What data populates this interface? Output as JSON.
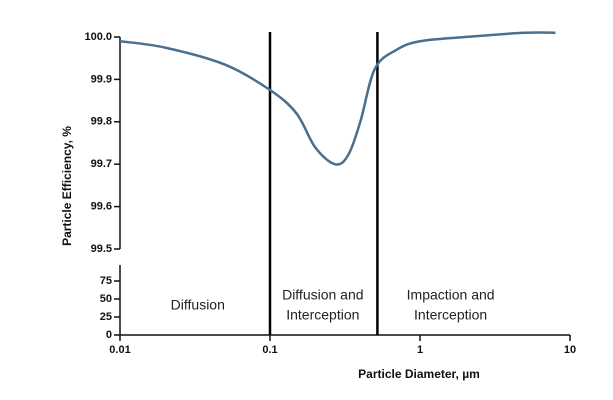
{
  "chart_data": {
    "type": "line",
    "x_label": "Particle Diameter, µm",
    "y_label": "Particle Efficiency, %",
    "log_x": true,
    "xlim": [
      0.01,
      10
    ],
    "xticks": [
      0.01,
      0.1,
      1,
      10
    ],
    "ylim": [
      99.5,
      100.0
    ],
    "yticks": [
      {
        "value": 100.0,
        "label": "100.0"
      },
      99.9,
      99.8,
      99.7,
      99.6,
      99.5
    ],
    "lower_ylim": [
      0,
      75
    ],
    "lower_yticks": [
      0,
      25,
      50,
      75
    ],
    "dividers": [
      0.1,
      0.52
    ],
    "annotations": [
      {
        "lines": [
          "Diffusion"
        ],
        "x": 0.033
      },
      {
        "lines": [
          "Diffusion and",
          "Interception"
        ],
        "x": 0.225
      },
      {
        "lines": [
          "Impaction and",
          "Interception"
        ],
        "x": 1.6
      }
    ],
    "series": [
      {
        "name": "Particle Efficiency",
        "color": "#4a6f8f",
        "x": [
          0.01,
          0.02,
          0.05,
          0.1,
          0.15,
          0.2,
          0.27,
          0.33,
          0.4,
          0.5,
          0.7,
          1,
          2,
          5,
          8
        ],
        "values": [
          99.99,
          99.975,
          99.935,
          99.875,
          99.82,
          99.74,
          99.7,
          99.72,
          99.8,
          99.925,
          99.97,
          99.99,
          100.0,
          100.01,
          100.01
        ]
      }
    ]
  }
}
